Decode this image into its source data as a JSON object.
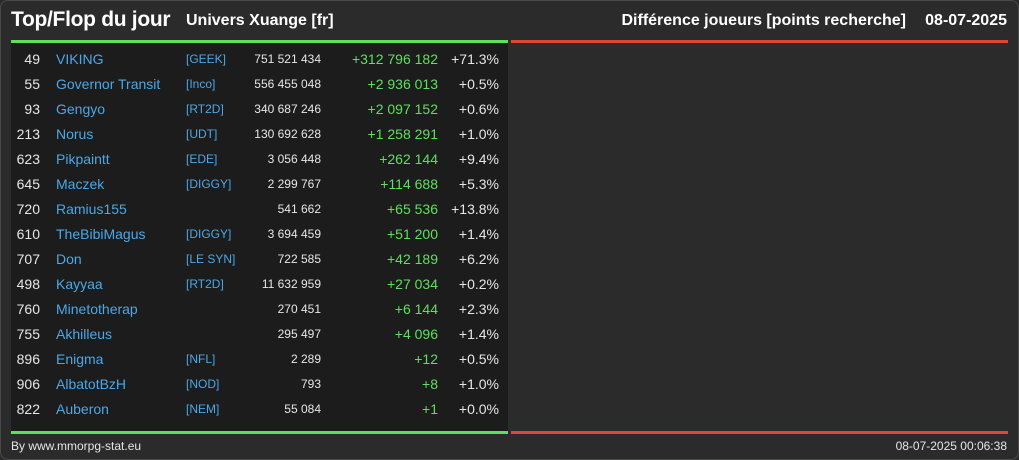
{
  "header": {
    "title": "Top/Flop du jour",
    "universe": "Univers Xuange [fr]",
    "metric": "Différence joueurs [points recherche]",
    "date": "08-07-2025"
  },
  "colors": {
    "background": "#2b2b2b",
    "panel": "#1c1c1c",
    "top_accent": "#5ee05e",
    "flop_accent": "#e0453a",
    "link": "#4aa8e8",
    "positive": "#5ee05e"
  },
  "top_rows": [
    {
      "rank": "49",
      "player": "VIKING",
      "alliance": "[GEEK]",
      "points": "751 521 434",
      "delta": "+312 796 182",
      "pct": "+71.3%"
    },
    {
      "rank": "55",
      "player": "Governor Transit",
      "alliance": "[Inco]",
      "points": "556 455 048",
      "delta": "+2 936 013",
      "pct": "+0.5%"
    },
    {
      "rank": "93",
      "player": "Gengyo",
      "alliance": "[RT2D]",
      "points": "340 687 246",
      "delta": "+2 097 152",
      "pct": "+0.6%"
    },
    {
      "rank": "213",
      "player": "Norus",
      "alliance": "[UDT]",
      "points": "130 692 628",
      "delta": "+1 258 291",
      "pct": "+1.0%"
    },
    {
      "rank": "623",
      "player": "Pikpaintt",
      "alliance": "[EDE]",
      "points": "3 056 448",
      "delta": "+262 144",
      "pct": "+9.4%"
    },
    {
      "rank": "645",
      "player": "Maczek",
      "alliance": "[DIGGY]",
      "points": "2 299 767",
      "delta": "+114 688",
      "pct": "+5.3%"
    },
    {
      "rank": "720",
      "player": "Ramius155",
      "alliance": "",
      "points": "541 662",
      "delta": "+65 536",
      "pct": "+13.8%"
    },
    {
      "rank": "610",
      "player": "TheBibiMagus",
      "alliance": "[DIGGY]",
      "points": "3 694 459",
      "delta": "+51 200",
      "pct": "+1.4%"
    },
    {
      "rank": "707",
      "player": "Don",
      "alliance": "[LE SYN]",
      "points": "722 585",
      "delta": "+42 189",
      "pct": "+6.2%"
    },
    {
      "rank": "498",
      "player": "Kayyaa",
      "alliance": "[RT2D]",
      "points": "11 632 959",
      "delta": "+27 034",
      "pct": "+0.2%"
    },
    {
      "rank": "760",
      "player": "Minetotherap",
      "alliance": "",
      "points": "270 451",
      "delta": "+6 144",
      "pct": "+2.3%"
    },
    {
      "rank": "755",
      "player": "Akhilleus",
      "alliance": "",
      "points": "295 497",
      "delta": "+4 096",
      "pct": "+1.4%"
    },
    {
      "rank": "896",
      "player": "Enigma",
      "alliance": "[NFL]",
      "points": "2 289",
      "delta": "+12",
      "pct": "+0.5%"
    },
    {
      "rank": "906",
      "player": "AlbatotBzH",
      "alliance": "[NOD]",
      "points": "793",
      "delta": "+8",
      "pct": "+1.0%"
    },
    {
      "rank": "822",
      "player": "Auberon",
      "alliance": "[NEM]",
      "points": "55 084",
      "delta": "+1",
      "pct": "+0.0%"
    }
  ],
  "footer": {
    "credit": "By www.mmorpg-stat.eu",
    "timestamp": "08-07-2025 00:06:38"
  }
}
